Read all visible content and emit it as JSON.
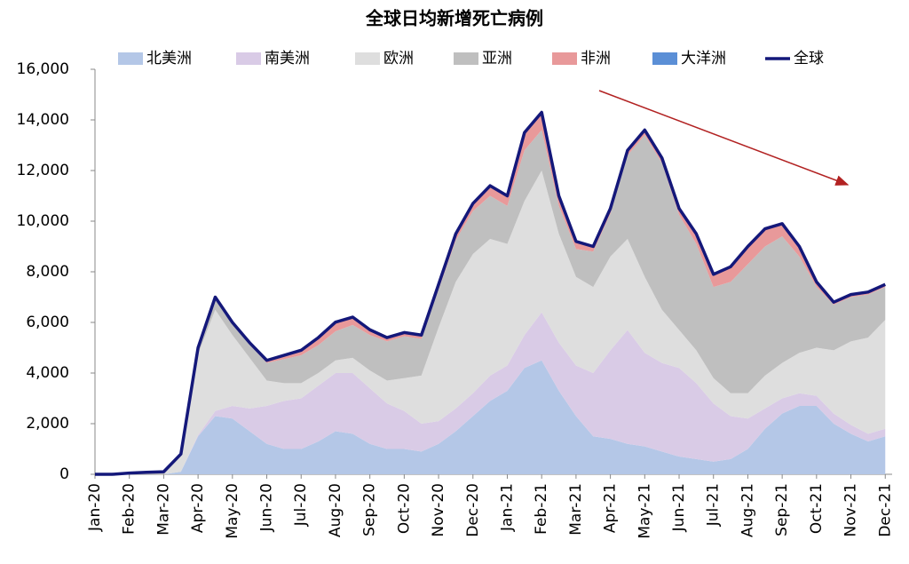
{
  "chart_data": {
    "type": "stacked_area",
    "title": "全球日均新增死亡病例",
    "x": [
      0,
      0.5,
      1,
      1.5,
      2,
      2.5,
      3,
      3.5,
      4,
      4.5,
      5,
      5.5,
      6,
      6.5,
      7,
      7.5,
      8,
      8.5,
      9,
      9.5,
      10,
      10.5,
      11,
      11.5,
      12,
      12.5,
      13,
      13.5,
      14,
      14.5,
      15,
      15.5,
      16,
      16.5,
      17,
      17.5,
      18,
      18.5,
      19,
      19.5,
      20,
      20.5,
      21,
      21.5,
      22,
      22.5,
      23
    ],
    "xlim": [
      0,
      23.2
    ],
    "xticks": [
      {
        "value": 0,
        "label": "Jan-20"
      },
      {
        "value": 1,
        "label": "Feb-20"
      },
      {
        "value": 2,
        "label": "Mar-20"
      },
      {
        "value": 3,
        "label": "Apr-20"
      },
      {
        "value": 4,
        "label": "May-20"
      },
      {
        "value": 5,
        "label": "Jun-20"
      },
      {
        "value": 6,
        "label": "Jul-20"
      },
      {
        "value": 7,
        "label": "Aug-20"
      },
      {
        "value": 8,
        "label": "Sep-20"
      },
      {
        "value": 9,
        "label": "Oct-20"
      },
      {
        "value": 10,
        "label": "Nov-20"
      },
      {
        "value": 11,
        "label": "Dec-20"
      },
      {
        "value": 12,
        "label": "Jan-21"
      },
      {
        "value": 13,
        "label": "Feb-21"
      },
      {
        "value": 14,
        "label": "Mar-21"
      },
      {
        "value": 15,
        "label": "Apr-21"
      },
      {
        "value": 16,
        "label": "May-21"
      },
      {
        "value": 17,
        "label": "Jun-21"
      },
      {
        "value": 18,
        "label": "Jul-21"
      },
      {
        "value": 19,
        "label": "Aug-21"
      },
      {
        "value": 20,
        "label": "Sep-21"
      },
      {
        "value": 21,
        "label": "Oct-21"
      },
      {
        "value": 22,
        "label": "Nov-21"
      },
      {
        "value": 23,
        "label": "Dec-21"
      }
    ],
    "ylim": [
      0,
      16000
    ],
    "yticks": [
      0,
      {
        "value": 2000,
        "label": "2,000"
      },
      {
        "value": 4000,
        "label": "4,000"
      },
      {
        "value": 6000,
        "label": "6,000"
      },
      {
        "value": 8000,
        "label": "8,000"
      },
      {
        "value": 10000,
        "label": "10,000"
      },
      {
        "value": 12000,
        "label": "12,000"
      },
      {
        "value": 14000,
        "label": "14,000"
      },
      {
        "value": 16000,
        "label": "16,000"
      }
    ],
    "series": [
      {
        "name": "北美洲",
        "color": "#b4c7e7",
        "values": [
          0,
          0,
          0,
          0,
          0,
          100,
          1500,
          2300,
          2200,
          1700,
          1200,
          1000,
          1000,
          1300,
          1700,
          1600,
          1200,
          1000,
          1000,
          900,
          1200,
          1700,
          2300,
          2900,
          3300,
          4200,
          4500,
          3300,
          2300,
          1500,
          1400,
          1200,
          1100,
          900,
          700,
          600,
          500,
          600,
          1000,
          1800,
          2400,
          2700,
          2700,
          2000,
          1600,
          1300,
          1500
        ]
      },
      {
        "name": "南美洲",
        "color": "#d9cbe6",
        "values": [
          0,
          0,
          0,
          0,
          0,
          0,
          50,
          200,
          500,
          900,
          1500,
          1900,
          2000,
          2200,
          2300,
          2400,
          2200,
          1800,
          1500,
          1100,
          900,
          900,
          900,
          1000,
          1000,
          1300,
          1900,
          1900,
          2000,
          2500,
          3500,
          4500,
          3700,
          3500,
          3500,
          3000,
          2300,
          1700,
          1200,
          800,
          600,
          500,
          400,
          400,
          350,
          300,
          300
        ]
      },
      {
        "name": "欧洲",
        "color": "#dedede",
        "values": [
          0,
          0,
          0,
          0,
          0,
          600,
          3200,
          4000,
          2800,
          2000,
          1000,
          700,
          600,
          500,
          500,
          600,
          700,
          900,
          1300,
          1900,
          3700,
          5000,
          5500,
          5400,
          4800,
          5300,
          5600,
          4300,
          3500,
          3400,
          3700,
          3600,
          3000,
          2100,
          1500,
          1300,
          1000,
          900,
          1000,
          1300,
          1400,
          1600,
          1900,
          2500,
          3300,
          3800,
          4300
        ]
      },
      {
        "name": "亚洲",
        "color": "#bfbfbf",
        "values": [
          0,
          0,
          50,
          80,
          100,
          100,
          230,
          450,
          440,
          520,
          700,
          950,
          1100,
          1100,
          1150,
          1300,
          1400,
          1550,
          1650,
          1450,
          1500,
          1650,
          1700,
          1700,
          1500,
          2000,
          1600,
          1100,
          1100,
          1400,
          1700,
          3300,
          5600,
          5800,
          4550,
          4200,
          3600,
          4400,
          5100,
          5100,
          5000,
          3800,
          2400,
          1800,
          1750,
          1700,
          1300
        ]
      },
      {
        "name": "非洲",
        "color": "#e8999a",
        "values": [
          0,
          0,
          0,
          0,
          0,
          0,
          20,
          50,
          60,
          80,
          100,
          150,
          200,
          300,
          350,
          300,
          200,
          150,
          150,
          150,
          200,
          250,
          300,
          400,
          400,
          700,
          700,
          400,
          300,
          200,
          200,
          200,
          200,
          200,
          250,
          400,
          500,
          600,
          700,
          700,
          500,
          400,
          200,
          100,
          100,
          100,
          100
        ]
      },
      {
        "name": "大洋洲",
        "color": "#5b8fd6",
        "values": [
          0,
          0,
          0,
          0,
          0,
          0,
          0,
          0,
          0,
          0,
          0,
          0,
          0,
          0,
          10,
          10,
          10,
          0,
          0,
          0,
          0,
          0,
          0,
          0,
          0,
          0,
          0,
          0,
          0,
          0,
          0,
          0,
          0,
          0,
          0,
          0,
          0,
          0,
          0,
          0,
          0,
          0,
          0,
          0,
          0,
          0,
          0
        ]
      },
      {
        "name": "全球",
        "color": "#14187a",
        "type": "line",
        "values": [
          0,
          0,
          50,
          80,
          100,
          800,
          5000,
          7000,
          6000,
          5200,
          4500,
          4700,
          4900,
          5400,
          6010,
          6210,
          5710,
          5400,
          5600,
          5500,
          7500,
          9500,
          10700,
          11400,
          11000,
          13500,
          14300,
          11000,
          9200,
          9000,
          10500,
          12800,
          13600,
          12500,
          10500,
          9500,
          7900,
          8200,
          9000,
          9700,
          9900,
          9000,
          7600,
          6800,
          7100,
          7200,
          7500
        ]
      }
    ]
  }
}
